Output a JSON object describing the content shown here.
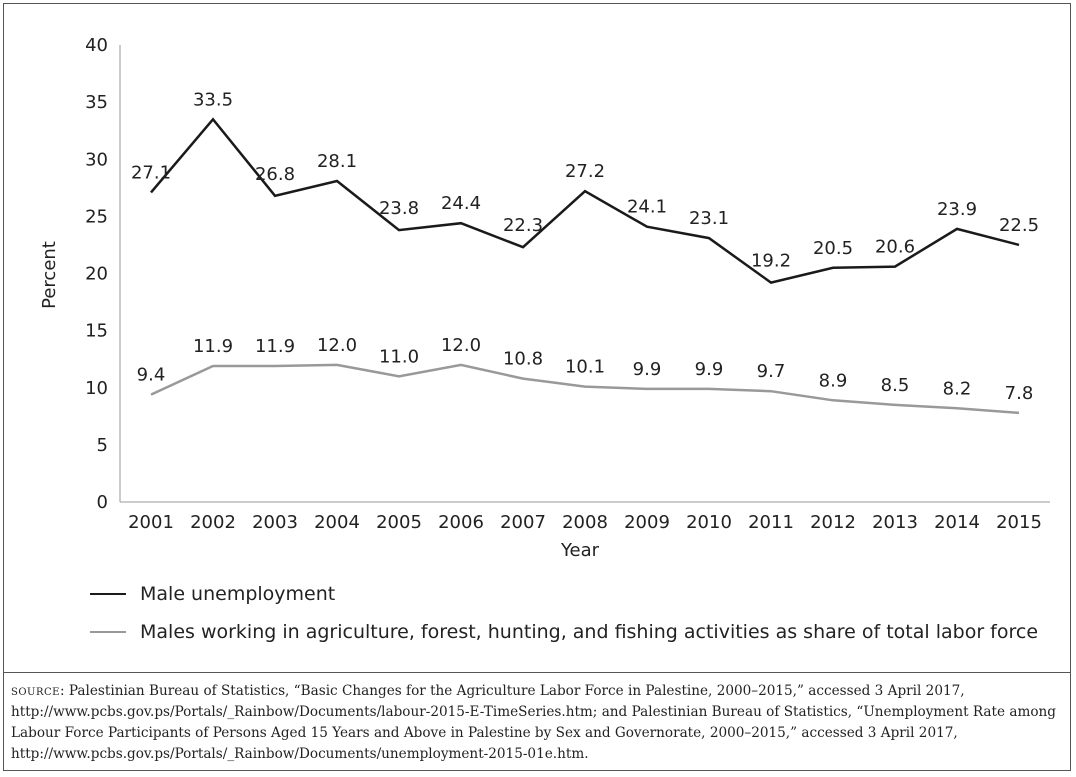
{
  "chart_data": {
    "type": "line",
    "title": "",
    "xlabel": "Year",
    "ylabel": "Percent",
    "ylim": [
      0,
      40
    ],
    "yticks": [
      "0",
      "5",
      "10",
      "15",
      "20",
      "25",
      "30",
      "35",
      "40"
    ],
    "categories": [
      "2001",
      "2002",
      "2003",
      "2004",
      "2005",
      "2006",
      "2007",
      "2008",
      "2009",
      "2010",
      "2011",
      "2012",
      "2013",
      "2014",
      "2015"
    ],
    "grid": false,
    "legend_position": "bottom",
    "series": [
      {
        "name": "Male unemployment",
        "color": "#1a1a1a",
        "values": [
          27.1,
          33.5,
          26.8,
          28.1,
          23.8,
          24.4,
          22.3,
          27.2,
          24.1,
          23.1,
          19.2,
          20.5,
          20.6,
          23.9,
          22.5
        ],
        "labels": [
          "27.1",
          "33.5",
          "26.8",
          "28.1",
          "23.8",
          "24.4",
          "22.3",
          "27.2",
          "24.1",
          "23.1",
          "19.2",
          "20.5",
          "20.6",
          "23.9",
          "22.5"
        ]
      },
      {
        "name": "Males working in agriculture, forest, hunting, and fishing activities as share of total labor force",
        "color": "#999999",
        "values": [
          9.4,
          11.9,
          11.9,
          12.0,
          11.0,
          12.0,
          10.8,
          10.1,
          9.9,
          9.9,
          9.7,
          8.9,
          8.5,
          8.2,
          7.8
        ],
        "labels": [
          "9.4",
          "11.9",
          "11.9",
          "12.0",
          "11.0",
          "12.0",
          "10.8",
          "10.1",
          "9.9",
          "9.9",
          "9.7",
          "8.9",
          "8.5",
          "8.2",
          "7.8"
        ]
      }
    ]
  },
  "source": {
    "prefix": "source",
    "text": ": Palestinian Bureau of Statistics, “Basic Changes for the Agriculture Labor Force in Palestine, 2000–2015,” accessed 3 April 2017, http://www.pcbs.gov.ps/Portals/_Rainbow/Documents/labour-2015-E-TimeSeries.htm; and Palestinian Bureau of Statistics, “Unemployment Rate among Labour Force Participants of Persons Aged 15 Years and Above in Palestine by Sex and Governorate, 2000–2015,” accessed 3 April 2017, http://www.pcbs.gov.ps/Portals/_Rainbow/Documents/unemployment-2015-01e.htm."
  }
}
